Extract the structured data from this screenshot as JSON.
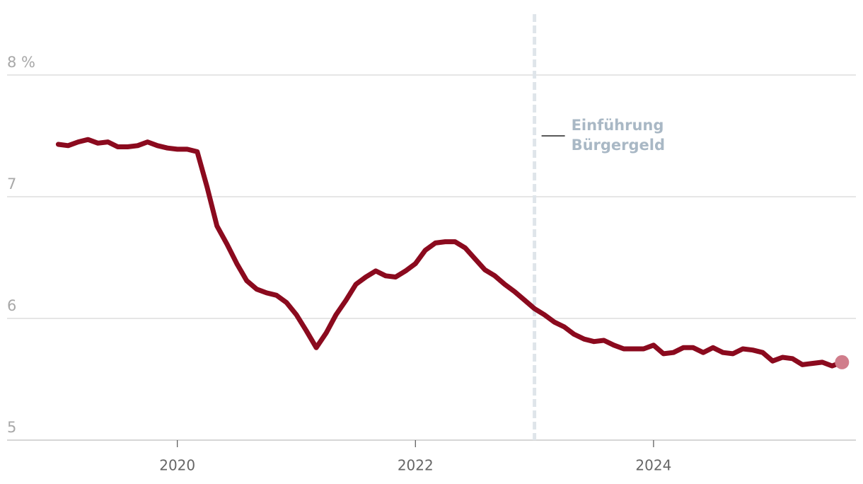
{
  "chart_data": {
    "type": "line",
    "x": [
      2019,
      2019.083,
      2019.167,
      2019.25,
      2019.333,
      2019.417,
      2019.5,
      2019.583,
      2019.667,
      2019.75,
      2019.833,
      2019.917,
      2020,
      2020.083,
      2020.167,
      2020.25,
      2020.333,
      2020.417,
      2020.5,
      2020.583,
      2020.667,
      2020.75,
      2020.833,
      2020.917,
      2021,
      2021.083,
      2021.167,
      2021.25,
      2021.333,
      2021.417,
      2021.5,
      2021.583,
      2021.667,
      2021.75,
      2021.833,
      2021.917,
      2022,
      2022.083,
      2022.167,
      2022.25,
      2022.333,
      2022.417,
      2022.5,
      2022.583,
      2022.667,
      2022.75,
      2022.833,
      2022.917,
      2023,
      2023.083,
      2023.167,
      2023.25,
      2023.333,
      2023.417,
      2023.5,
      2023.583,
      2023.667,
      2023.75,
      2023.833,
      2023.917,
      2024,
      2024.083,
      2024.167,
      2024.25,
      2024.333,
      2024.417,
      2024.5,
      2024.583,
      2024.667,
      2024.75,
      2024.833,
      2024.917,
      2025,
      2025.083,
      2025.167,
      2025.25,
      2025.333,
      2025.417,
      2025.5,
      2025.583
    ],
    "values": [
      7.43,
      7.42,
      7.45,
      7.47,
      7.44,
      7.45,
      7.41,
      7.41,
      7.42,
      7.45,
      7.42,
      7.4,
      7.39,
      7.39,
      7.37,
      7.08,
      6.76,
      6.61,
      6.45,
      6.31,
      6.24,
      6.21,
      6.19,
      6.13,
      6.03,
      5.9,
      5.76,
      5.88,
      6.03,
      6.15,
      6.28,
      6.34,
      6.39,
      6.35,
      6.34,
      6.39,
      6.45,
      6.56,
      6.62,
      6.63,
      6.63,
      6.58,
      6.49,
      6.4,
      6.35,
      6.28,
      6.22,
      6.15,
      6.08,
      6.03,
      5.97,
      5.93,
      5.87,
      5.83,
      5.81,
      5.82,
      5.78,
      5.75,
      5.75,
      5.75,
      5.78,
      5.71,
      5.72,
      5.76,
      5.76,
      5.72,
      5.76,
      5.72,
      5.71,
      5.75,
      5.74,
      5.72,
      5.65,
      5.68,
      5.67,
      5.62,
      5.63,
      5.64,
      5.61,
      5.64
    ],
    "color": "#8b0a1e",
    "end_marker_color": "#d07d8b",
    "xlim": [
      2018.57,
      2025.7
    ],
    "xticks": [
      2020,
      2022,
      2024
    ],
    "ylim": [
      5,
      8.5
    ],
    "yticks": [
      5,
      6,
      7,
      {
        "value": 8,
        "label": "8 %"
      }
    ],
    "grid": true,
    "annotation": {
      "x": 2023,
      "text": [
        "Einführung",
        "Bürgergeld"
      ]
    }
  }
}
